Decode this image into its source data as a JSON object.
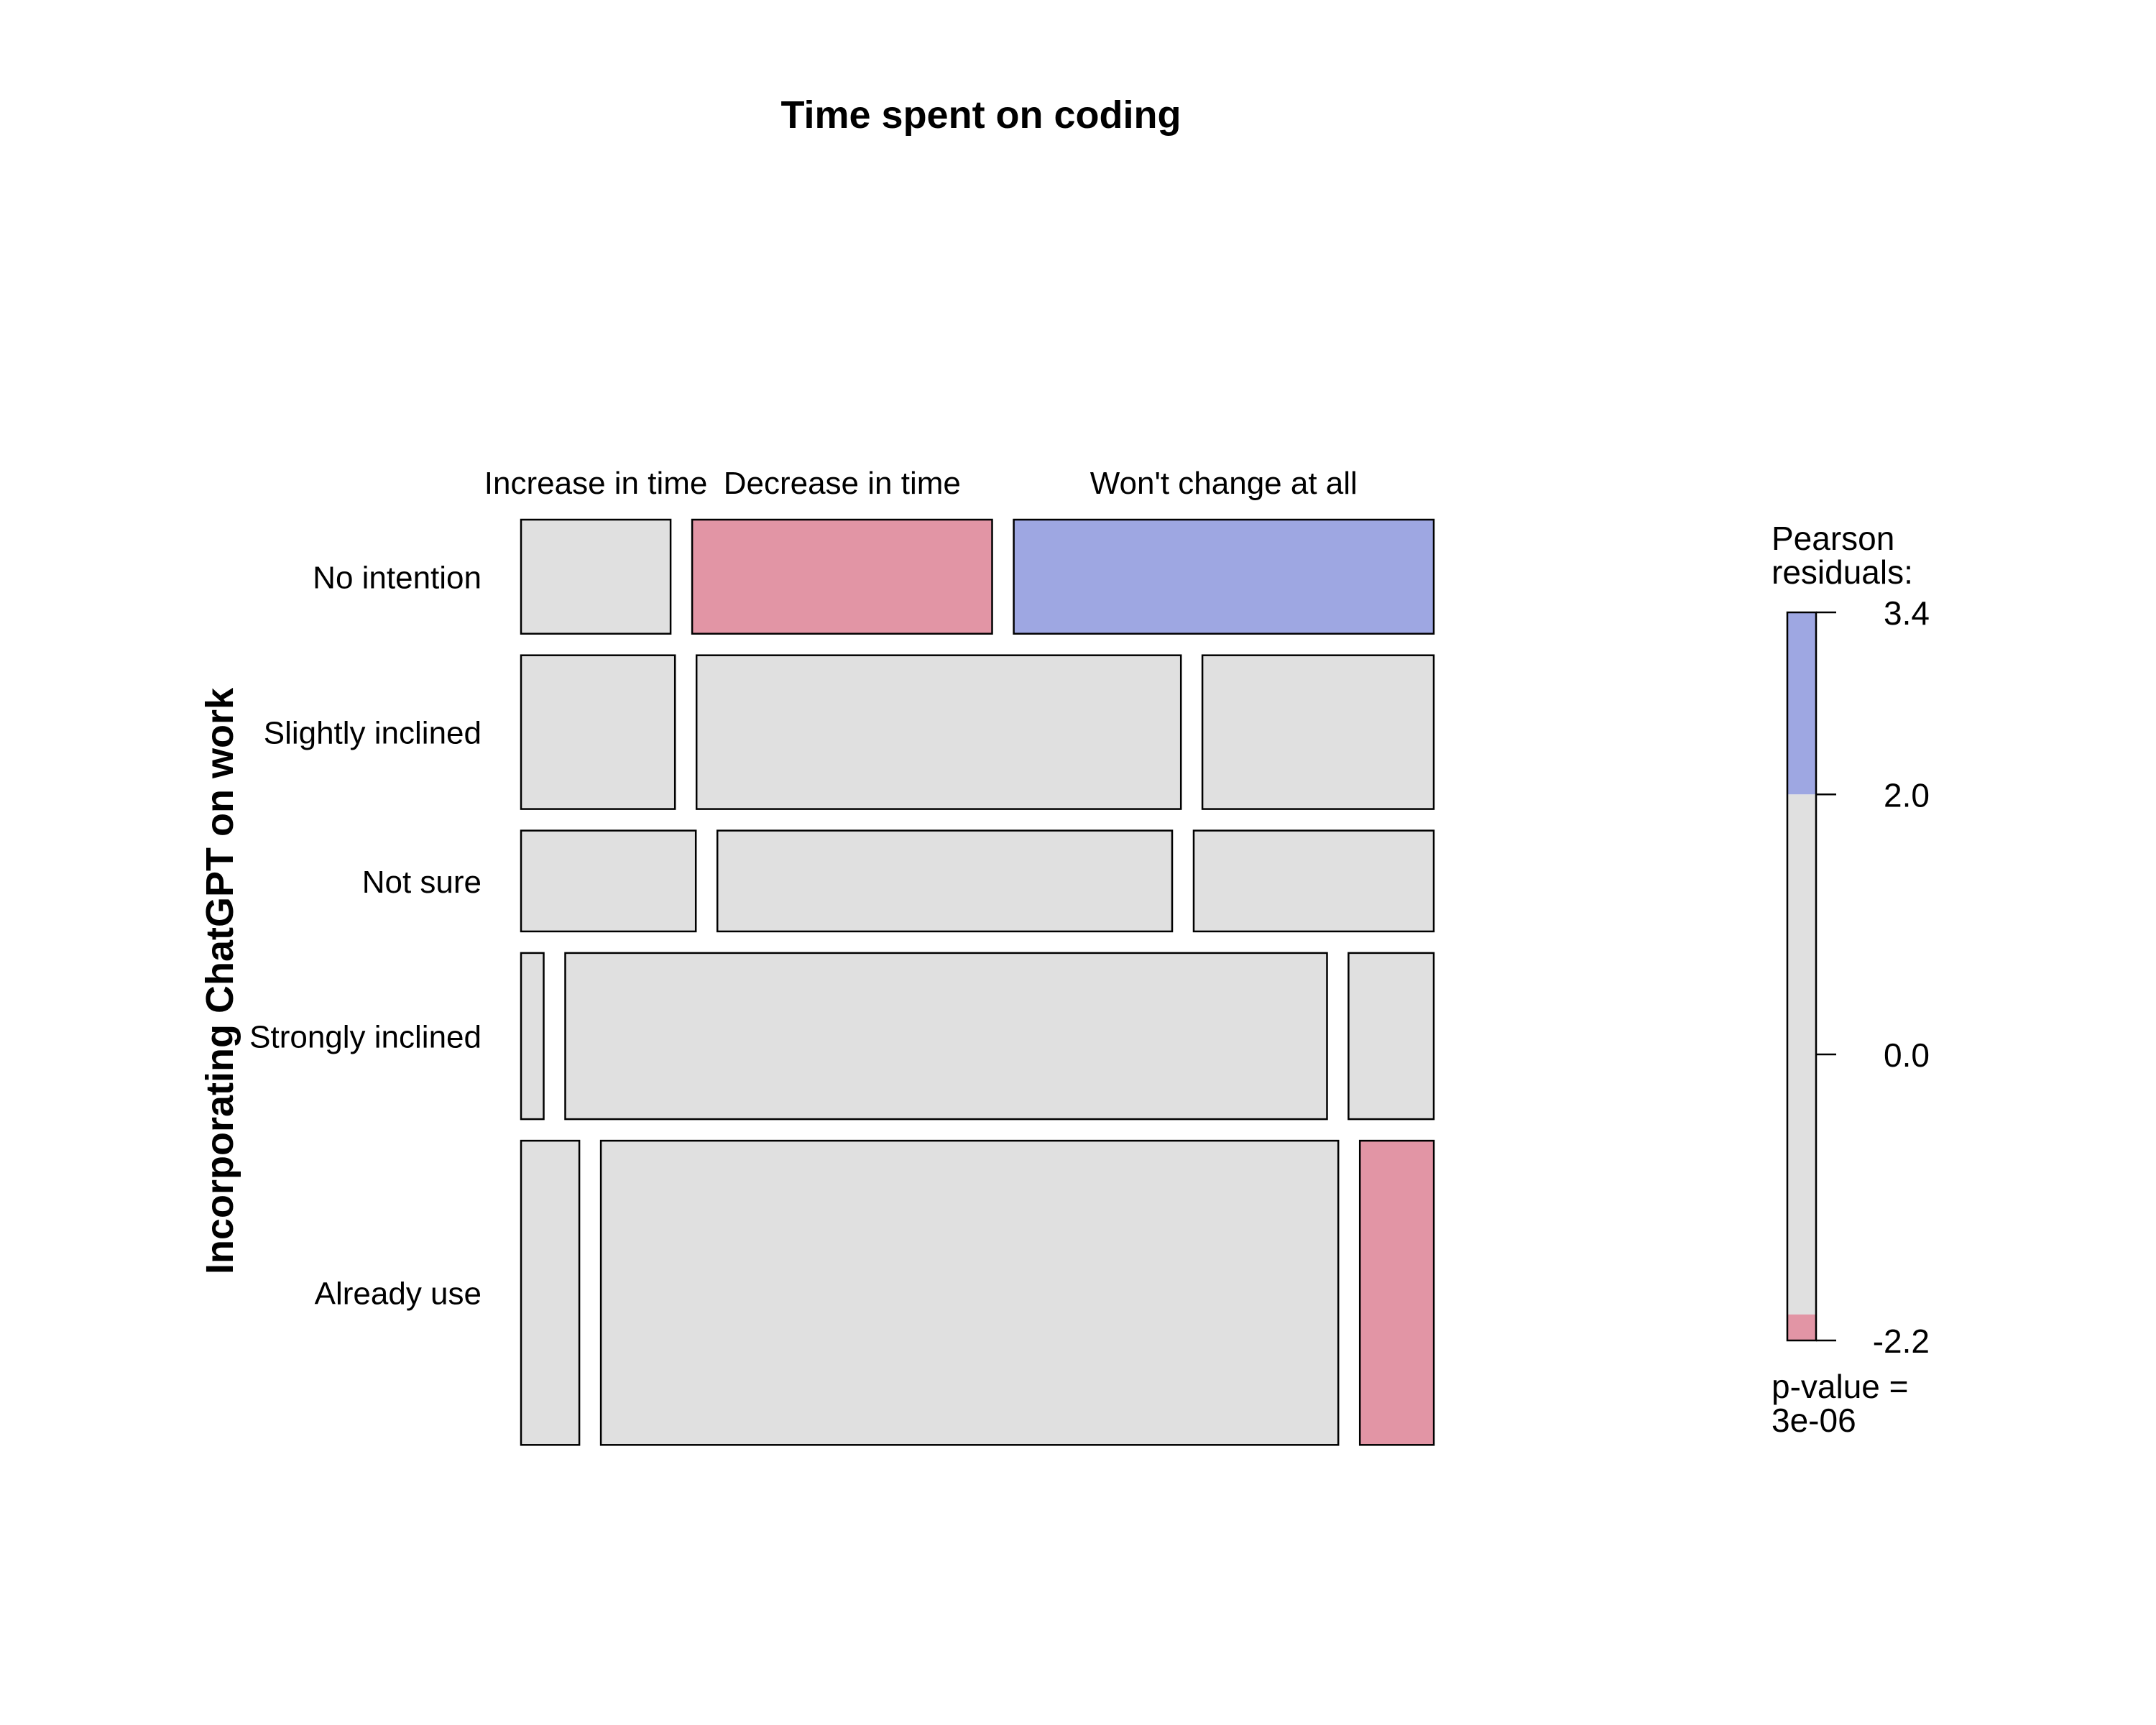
{
  "chart_data": {
    "type": "mosaic",
    "title": "Time spent on coding",
    "column_variable": "Time spent on coding",
    "row_variable": "Incorporating ChatGPT on work",
    "columns": [
      "Increase in time",
      "Decrease in time",
      "Won't change at all"
    ],
    "rows": [
      {
        "label": "No intention",
        "row_share": 0.138,
        "column_shares": [
          0.172,
          0.345,
          0.483
        ],
        "shading": [
          "neutral",
          "negative",
          "positive"
        ]
      },
      {
        "label": "Slightly inclined",
        "row_share": 0.186,
        "column_shares": [
          0.177,
          0.557,
          0.266
        ],
        "shading": [
          "neutral",
          "neutral",
          "neutral"
        ]
      },
      {
        "label": "Not sure",
        "row_share": 0.122,
        "column_shares": [
          0.201,
          0.523,
          0.276
        ],
        "shading": [
          "neutral",
          "neutral",
          "neutral"
        ]
      },
      {
        "label": "Strongly inclined",
        "row_share": 0.201,
        "column_shares": [
          0.026,
          0.876,
          0.098
        ],
        "shading": [
          "neutral",
          "neutral",
          "neutral"
        ]
      },
      {
        "label": "Already use",
        "row_share": 0.368,
        "column_shares": [
          0.067,
          0.848,
          0.085
        ],
        "shading": [
          "neutral",
          "neutral",
          "negative"
        ]
      }
    ],
    "legend": {
      "title_line1": "Pearson",
      "title_line2": "residuals:",
      "range": [
        -2.2,
        3.4
      ],
      "ticks": [
        "3.4",
        "2.0",
        "0.0",
        "-2.2"
      ],
      "tick_values": [
        3.4,
        2.0,
        0.0,
        -2.2
      ],
      "bands": [
        {
          "from": 2.0,
          "to": 3.4,
          "shading": "positive"
        },
        {
          "from": -2.0,
          "to": 2.0,
          "shading": "neutral"
        },
        {
          "from": -2.2,
          "to": -2.0,
          "shading": "negative"
        }
      ],
      "placement": "right",
      "pvalue_line1": "p-value =",
      "pvalue_line2": "3e-06"
    },
    "colors": {
      "positive": "#9EA7E2",
      "negative": "#E295A5",
      "neutral": "#E0E0E0",
      "border": "#000000",
      "text": "#000000"
    }
  }
}
